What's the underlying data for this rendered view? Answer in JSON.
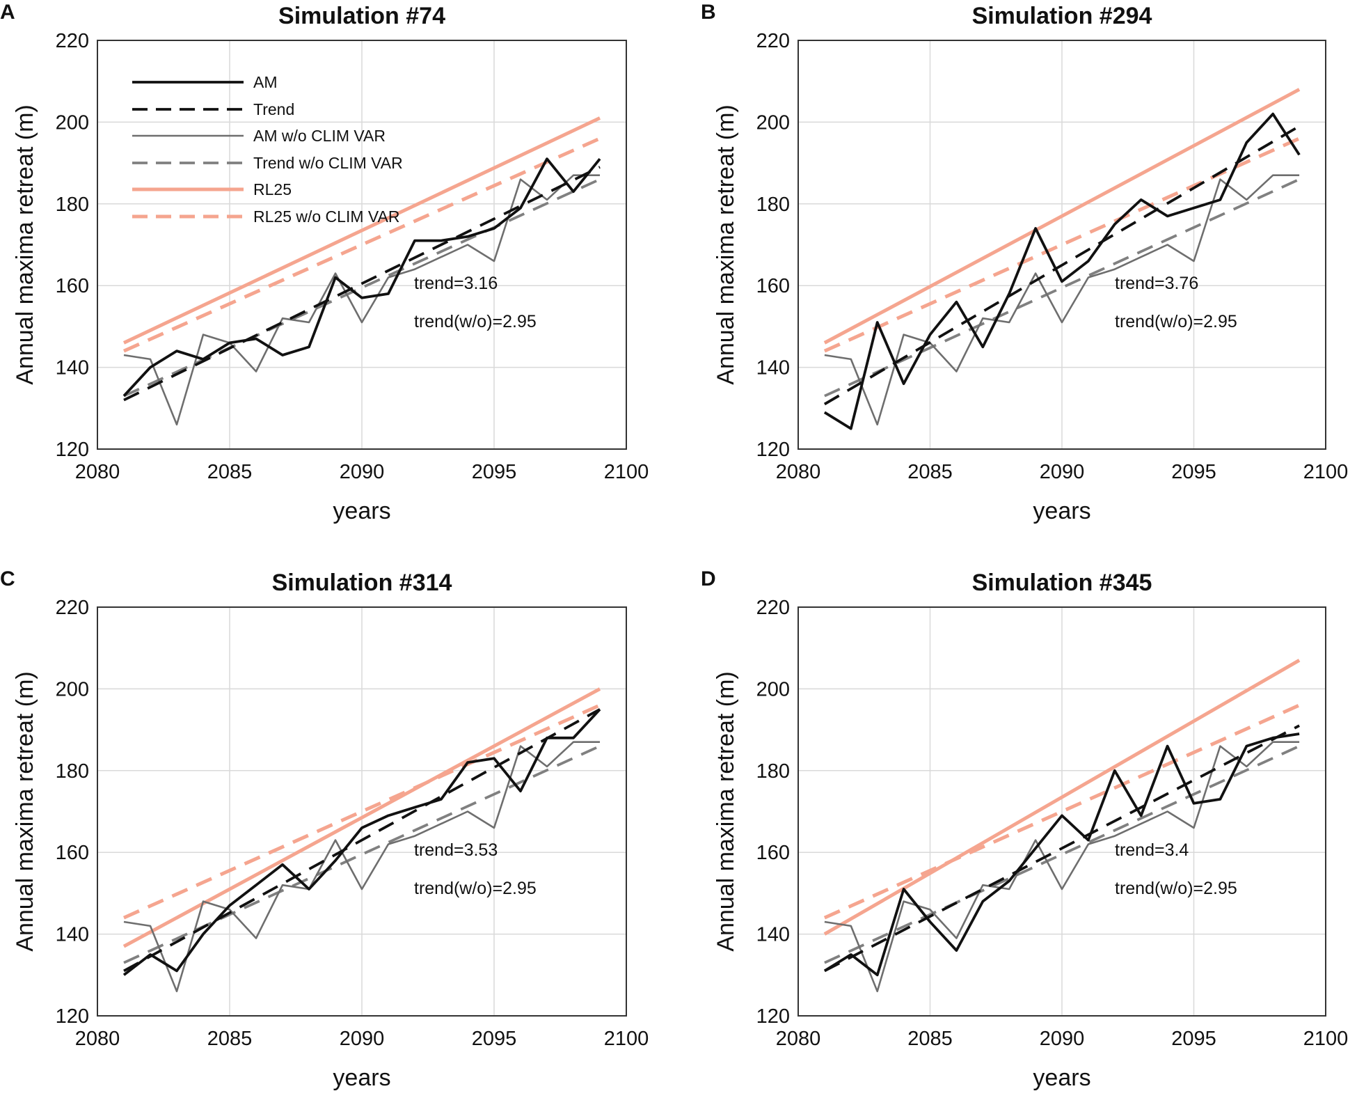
{
  "chart_data": [
    {
      "type": "line",
      "panel": "A",
      "title": "Simulation #74",
      "xlabel": "years",
      "ylabel": "Annual maxima retreat (m)",
      "xlim": [
        2080,
        2100
      ],
      "ylim": [
        120,
        220
      ],
      "xticks": [
        "2080",
        "2085",
        "2090",
        "2095",
        "2100"
      ],
      "yticks": [
        "120",
        "140",
        "160",
        "180",
        "200",
        "220"
      ],
      "grid": true,
      "legend_position": "top-left",
      "x": [
        2081,
        2082,
        2083,
        2084,
        2085,
        2086,
        2087,
        2088,
        2089,
        2090,
        2091,
        2092,
        2093,
        2094,
        2095,
        2096,
        2097,
        2098,
        2099
      ],
      "series": [
        {
          "name": "AM",
          "color": "#111111",
          "dash": "solid",
          "weight": "thick",
          "values": [
            133,
            140,
            144,
            142,
            146,
            147,
            143,
            145,
            162,
            157,
            158,
            171,
            171,
            172,
            174,
            179,
            191,
            183,
            191
          ]
        },
        {
          "name": "Trend",
          "color": "#111111",
          "dash": "dashed",
          "weight": "thick",
          "start": [
            2081,
            132
          ],
          "end": [
            2099,
            189
          ]
        },
        {
          "name": "AM w/o CLIM VAR",
          "color": "#6e6e6e",
          "dash": "solid",
          "weight": "thin",
          "values": [
            143,
            142,
            126,
            148,
            146,
            139,
            152,
            151,
            163,
            151,
            162,
            164,
            167,
            170,
            166,
            186,
            181,
            187,
            187
          ]
        },
        {
          "name": "Trend w/o CLIM VAR",
          "color": "#808080",
          "dash": "dashed",
          "weight": "thick",
          "start": [
            2081,
            133
          ],
          "end": [
            2099,
            186
          ]
        },
        {
          "name": "RL25",
          "color": "#f5a58f",
          "dash": "solid",
          "weight": "thick",
          "start": [
            2081,
            146
          ],
          "end": [
            2099,
            201
          ]
        },
        {
          "name": "RL25 w/o CLIM VAR",
          "color": "#f5a58f",
          "dash": "dashed",
          "weight": "thick",
          "start": [
            2081,
            144
          ],
          "end": [
            2099,
            196
          ]
        }
      ],
      "annotations": [
        "trend=3.16",
        "trend(w/o)=2.95"
      ]
    },
    {
      "type": "line",
      "panel": "B",
      "title": "Simulation #294",
      "xlabel": "years",
      "ylabel": "Annual maxima retreat (m)",
      "xlim": [
        2080,
        2100
      ],
      "ylim": [
        120,
        220
      ],
      "xticks": [
        "2080",
        "2085",
        "2090",
        "2095",
        "2100"
      ],
      "yticks": [
        "120",
        "140",
        "160",
        "180",
        "200",
        "220"
      ],
      "grid": true,
      "x": [
        2081,
        2082,
        2083,
        2084,
        2085,
        2086,
        2087,
        2088,
        2089,
        2090,
        2091,
        2092,
        2093,
        2094,
        2095,
        2096,
        2097,
        2098,
        2099
      ],
      "series": [
        {
          "name": "AM",
          "color": "#111111",
          "dash": "solid",
          "weight": "thick",
          "values": [
            129,
            125,
            151,
            136,
            148,
            156,
            145,
            158,
            174,
            161,
            166,
            175,
            181,
            177,
            179,
            181,
            195,
            202,
            192
          ]
        },
        {
          "name": "Trend",
          "color": "#111111",
          "dash": "dashed",
          "weight": "thick",
          "start": [
            2081,
            131
          ],
          "end": [
            2099,
            199
          ]
        },
        {
          "name": "AM w/o CLIM VAR",
          "color": "#6e6e6e",
          "dash": "solid",
          "weight": "thin",
          "values": [
            143,
            142,
            126,
            148,
            146,
            139,
            152,
            151,
            163,
            151,
            162,
            164,
            167,
            170,
            166,
            186,
            181,
            187,
            187
          ]
        },
        {
          "name": "Trend w/o CLIM VAR",
          "color": "#808080",
          "dash": "dashed",
          "weight": "thick",
          "start": [
            2081,
            133
          ],
          "end": [
            2099,
            186
          ]
        },
        {
          "name": "RL25",
          "color": "#f5a58f",
          "dash": "solid",
          "weight": "thick",
          "start": [
            2081,
            146
          ],
          "end": [
            2099,
            208
          ]
        },
        {
          "name": "RL25 w/o CLIM VAR",
          "color": "#f5a58f",
          "dash": "dashed",
          "weight": "thick",
          "start": [
            2081,
            144
          ],
          "end": [
            2099,
            196
          ]
        }
      ],
      "annotations": [
        "trend=3.76",
        "trend(w/o)=2.95"
      ]
    },
    {
      "type": "line",
      "panel": "C",
      "title": "Simulation #314",
      "xlabel": "years",
      "ylabel": "Annual maxima retreat (m)",
      "xlim": [
        2080,
        2100
      ],
      "ylim": [
        120,
        220
      ],
      "xticks": [
        "2080",
        "2085",
        "2090",
        "2095",
        "2100"
      ],
      "yticks": [
        "120",
        "140",
        "160",
        "180",
        "200",
        "220"
      ],
      "grid": true,
      "x": [
        2081,
        2082,
        2083,
        2084,
        2085,
        2086,
        2087,
        2088,
        2089,
        2090,
        2091,
        2092,
        2093,
        2094,
        2095,
        2096,
        2097,
        2098,
        2099
      ],
      "series": [
        {
          "name": "AM",
          "color": "#111111",
          "dash": "solid",
          "weight": "thick",
          "values": [
            130,
            135,
            131,
            140,
            147,
            152,
            157,
            151,
            158,
            166,
            169,
            171,
            173,
            182,
            183,
            175,
            188,
            188,
            195
          ]
        },
        {
          "name": "Trend",
          "color": "#111111",
          "dash": "dashed",
          "weight": "thick",
          "start": [
            2081,
            131
          ],
          "end": [
            2099,
            195
          ]
        },
        {
          "name": "AM w/o CLIM VAR",
          "color": "#6e6e6e",
          "dash": "solid",
          "weight": "thin",
          "values": [
            143,
            142,
            126,
            148,
            146,
            139,
            152,
            151,
            163,
            151,
            162,
            164,
            167,
            170,
            166,
            186,
            181,
            187,
            187
          ]
        },
        {
          "name": "Trend w/o CLIM VAR",
          "color": "#808080",
          "dash": "dashed",
          "weight": "thick",
          "start": [
            2081,
            133
          ],
          "end": [
            2099,
            186
          ]
        },
        {
          "name": "RL25",
          "color": "#f5a58f",
          "dash": "solid",
          "weight": "thick",
          "start": [
            2081,
            137
          ],
          "end": [
            2099,
            200
          ]
        },
        {
          "name": "RL25 w/o CLIM VAR",
          "color": "#f5a58f",
          "dash": "dashed",
          "weight": "thick",
          "start": [
            2081,
            144
          ],
          "end": [
            2099,
            196
          ]
        }
      ],
      "annotations": [
        "trend=3.53",
        "trend(w/o)=2.95"
      ]
    },
    {
      "type": "line",
      "panel": "D",
      "title": "Simulation #345",
      "xlabel": "years",
      "ylabel": "Annual maxima retreat (m)",
      "xlim": [
        2080,
        2100
      ],
      "ylim": [
        120,
        220
      ],
      "xticks": [
        "2080",
        "2085",
        "2090",
        "2095",
        "2100"
      ],
      "yticks": [
        "120",
        "140",
        "160",
        "180",
        "200",
        "220"
      ],
      "grid": true,
      "x": [
        2081,
        2082,
        2083,
        2084,
        2085,
        2086,
        2087,
        2088,
        2089,
        2090,
        2091,
        2092,
        2093,
        2094,
        2095,
        2096,
        2097,
        2098,
        2099
      ],
      "series": [
        {
          "name": "AM",
          "color": "#111111",
          "dash": "solid",
          "weight": "thick",
          "values": [
            131,
            135,
            130,
            151,
            143,
            136,
            148,
            153,
            161,
            169,
            163,
            180,
            169,
            186,
            172,
            173,
            186,
            188,
            189
          ]
        },
        {
          "name": "Trend",
          "color": "#111111",
          "dash": "dashed",
          "weight": "thick",
          "start": [
            2081,
            131
          ],
          "end": [
            2099,
            191
          ]
        },
        {
          "name": "AM w/o CLIM VAR",
          "color": "#6e6e6e",
          "dash": "solid",
          "weight": "thin",
          "values": [
            143,
            142,
            126,
            148,
            146,
            139,
            152,
            151,
            163,
            151,
            162,
            164,
            167,
            170,
            166,
            186,
            181,
            187,
            187
          ]
        },
        {
          "name": "Trend w/o CLIM VAR",
          "color": "#808080",
          "dash": "dashed",
          "weight": "thick",
          "start": [
            2081,
            133
          ],
          "end": [
            2099,
            186
          ]
        },
        {
          "name": "RL25",
          "color": "#f5a58f",
          "dash": "solid",
          "weight": "thick",
          "start": [
            2081,
            140
          ],
          "end": [
            2099,
            207
          ]
        },
        {
          "name": "RL25 w/o CLIM VAR",
          "color": "#f5a58f",
          "dash": "dashed",
          "weight": "thick",
          "start": [
            2081,
            144
          ],
          "end": [
            2099,
            196
          ]
        }
      ],
      "annotations": [
        "trend=3.4",
        "trend(w/o)=2.95"
      ]
    }
  ]
}
